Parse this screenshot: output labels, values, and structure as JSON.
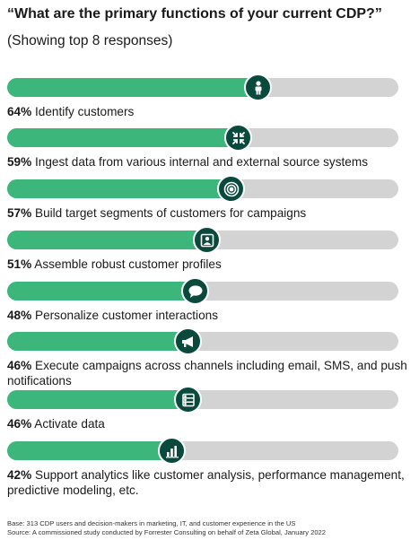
{
  "title": "“What are the primary functions of your current CDP?”",
  "subtitle": "(Showing top 8 responses)",
  "colors": {
    "fill": "#3db67b",
    "track": "#d3d3d3",
    "badge": "#0a4a3c"
  },
  "chart_data": {
    "type": "bar",
    "orientation": "horizontal",
    "unit": "%",
    "xlim": [
      0,
      100
    ],
    "title": "“What are the primary functions of your current CDP?”",
    "subtitle": "(Showing top 8 responses)",
    "items": [
      {
        "value": 64,
        "pct_label": "64%",
        "label": "Identify customers",
        "icon": "person-icon"
      },
      {
        "value": 59,
        "pct_label": "59%",
        "label": "Ingest data from various internal and external source systems",
        "icon": "arrows-inward-icon"
      },
      {
        "value": 57,
        "pct_label": "57%",
        "label": "Build target segments of customers for campaigns",
        "icon": "target-icon"
      },
      {
        "value": 51,
        "pct_label": "51%",
        "label": "Assemble robust customer profiles",
        "icon": "profile-card-icon"
      },
      {
        "value": 48,
        "pct_label": "48%",
        "label": "Personalize customer interactions",
        "icon": "chat-bubble-icon"
      },
      {
        "value": 46,
        "pct_label": "46%",
        "label": "Execute campaigns across channels including email, SMS, and push notifications",
        "icon": "megaphone-icon"
      },
      {
        "value": 46,
        "pct_label": "46%",
        "label": "Activate data",
        "icon": "database-icon"
      },
      {
        "value": 42,
        "pct_label": "42%",
        "label": "Support analytics like customer analysis, performance management, predictive modeling, etc.",
        "icon": "bar-chart-icon"
      }
    ]
  },
  "footer": {
    "base": "Base: 313 CDP users and decision-makers in marketing, IT, and customer experience in the US",
    "source": "Source: A commissioned study conducted by Forrester Consulting on behalf of Zeta Global, January 2022"
  }
}
